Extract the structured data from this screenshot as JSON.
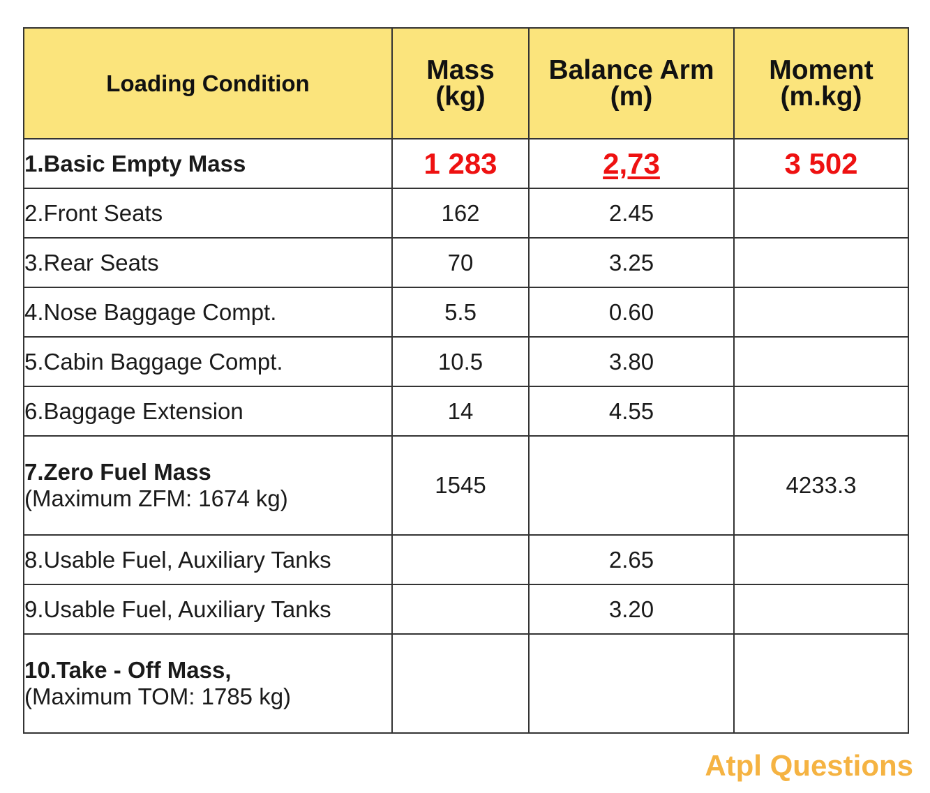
{
  "table": {
    "headers": {
      "loading_condition": "Loading Condition",
      "mass": {
        "line1": "Mass",
        "line2": "(kg)"
      },
      "balance_arm": {
        "line1": "Balance Arm",
        "line2": "(m)"
      },
      "moment": {
        "line1": "Moment",
        "line2": "(m.kg)"
      }
    },
    "rows": [
      {
        "condition": "1.Basic Empty Mass",
        "mass": "1 283",
        "arm": "2,73",
        "moment": "3 502"
      },
      {
        "condition": "2.Front Seats",
        "mass": "162",
        "arm": "2.45",
        "moment": ""
      },
      {
        "condition": "3.Rear Seats",
        "mass": "70",
        "arm": "3.25",
        "moment": ""
      },
      {
        "condition": "4.Nose Baggage Compt.",
        "mass": "5.5",
        "arm": "0.60",
        "moment": ""
      },
      {
        "condition": "5.Cabin Baggage Compt.",
        "mass": "10.5",
        "arm": "3.80",
        "moment": ""
      },
      {
        "condition": "6.Baggage Extension",
        "mass": "14",
        "arm": "4.55",
        "moment": ""
      },
      {
        "condition": "7.Zero Fuel Mass",
        "note": "(Maximum ZFM: 1674 kg)",
        "mass": "1545",
        "arm": "",
        "moment": "4233.3"
      },
      {
        "condition": "8.Usable Fuel, Auxiliary Tanks",
        "mass": "",
        "arm": "2.65",
        "moment": ""
      },
      {
        "condition": "9.Usable Fuel, Auxiliary Tanks",
        "mass": "",
        "arm": "3.20",
        "moment": ""
      },
      {
        "condition": "10.Take - Off Mass,",
        "note": "(Maximum TOM: 1785 kg)",
        "mass": "",
        "arm": "",
        "moment": ""
      }
    ]
  },
  "logo": {
    "text": "Atpl Questions"
  },
  "colors": {
    "header_bg": "#fbe47c",
    "highlight": "#ee1111",
    "logo": "#f5b342"
  }
}
